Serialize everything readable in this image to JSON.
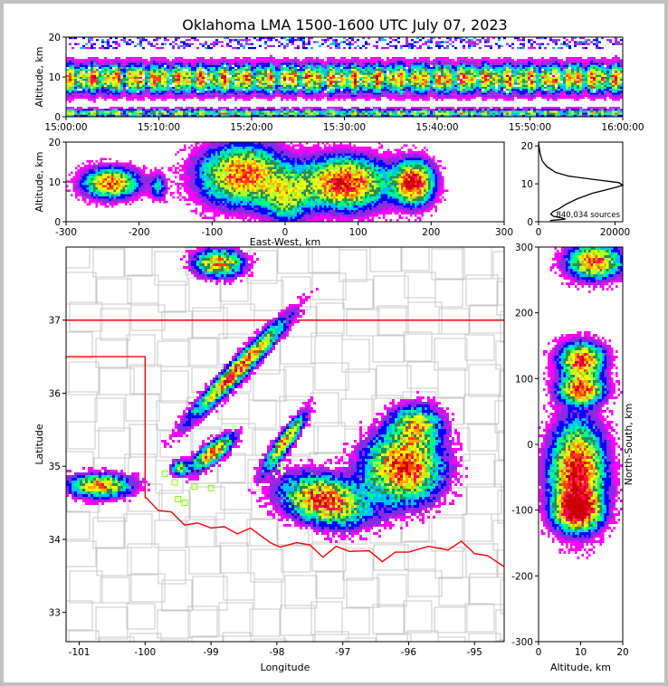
{
  "chart_data": {
    "title": "Oklahoma LMA 1500-1600 UTC July 07, 2023",
    "panels": [
      {
        "id": "time-height",
        "type": "heatmap",
        "xlabel": "",
        "ylabel": "Altitude, km",
        "xticks": [
          "15:00:00",
          "15:10:00",
          "15:20:00",
          "15:30:00",
          "15:40:00",
          "15:50:00",
          "16:00:00"
        ],
        "ylim": [
          0,
          20
        ],
        "yticks": [
          0,
          10,
          20
        ]
      },
      {
        "id": "east-west-altitude",
        "type": "heatmap",
        "xlabel": "East-West, km",
        "ylabel": "Altitude, km",
        "xlim": [
          -300,
          300
        ],
        "xticks": [
          -300,
          -200,
          -100,
          0,
          100,
          200,
          300
        ],
        "ylim": [
          0,
          20
        ],
        "yticks": [
          0,
          10,
          20
        ]
      },
      {
        "id": "altitude-histogram",
        "type": "line",
        "xlim": [
          0,
          22000
        ],
        "xticks": [
          0,
          20000
        ],
        "ylim": [
          0,
          21
        ],
        "yticks": [
          0,
          10,
          20
        ],
        "annotation": "840,034 sources",
        "profile": [
          {
            "alt": 0.3,
            "count": 3000
          },
          {
            "alt": 0.7,
            "count": 7000
          },
          {
            "alt": 1.0,
            "count": 6000
          },
          {
            "alt": 1.4,
            "count": 4000
          },
          {
            "alt": 2.0,
            "count": 3200
          },
          {
            "alt": 2.7,
            "count": 3800
          },
          {
            "alt": 3.5,
            "count": 5500
          },
          {
            "alt": 4.5,
            "count": 7000
          },
          {
            "alt": 6.0,
            "count": 10000
          },
          {
            "alt": 7.5,
            "count": 14000
          },
          {
            "alt": 9.0,
            "count": 20000
          },
          {
            "alt": 9.6,
            "count": 22000
          },
          {
            "alt": 10.3,
            "count": 21000
          },
          {
            "alt": 11.0,
            "count": 15500
          },
          {
            "alt": 12.0,
            "count": 8000
          },
          {
            "alt": 13.0,
            "count": 4500
          },
          {
            "alt": 14.5,
            "count": 2200
          },
          {
            "alt": 16.0,
            "count": 1000
          },
          {
            "alt": 18.0,
            "count": 400
          },
          {
            "alt": 20.0,
            "count": 100
          },
          {
            "alt": 21.0,
            "count": 0
          }
        ]
      },
      {
        "id": "plan-view",
        "type": "heatmap",
        "xlabel": "Longitude",
        "ylabel": "Latitude",
        "xlim": [
          -101.2,
          -94.55
        ],
        "xticks": [
          -101,
          -100,
          -99,
          -98,
          -97,
          -96,
          -95
        ],
        "ylim": [
          32.6,
          38.0
        ],
        "yticks": [
          33,
          34,
          35,
          36,
          37
        ]
      },
      {
        "id": "north-south-altitude",
        "type": "heatmap",
        "xlabel": "Altitude, km",
        "ylabel": "North-South, km",
        "xlim": [
          0,
          20
        ],
        "xticks": [
          0,
          10,
          20
        ],
        "ylim": [
          -300,
          300
        ],
        "yticks": [
          -300,
          -200,
          -100,
          0,
          100,
          200,
          300
        ]
      }
    ],
    "colormap": [
      "#ffffff",
      "#ff00ff",
      "#8a2be2",
      "#0000ff",
      "#00bfff",
      "#00ff7f",
      "#2e8b57",
      "#adff2f",
      "#ffff00",
      "#ffa500",
      "#ff4500",
      "#ff0066",
      "#cc0000"
    ],
    "border_color": "#ff0000",
    "county_color": "#c8c8c8",
    "station_color": "#7fff00"
  }
}
